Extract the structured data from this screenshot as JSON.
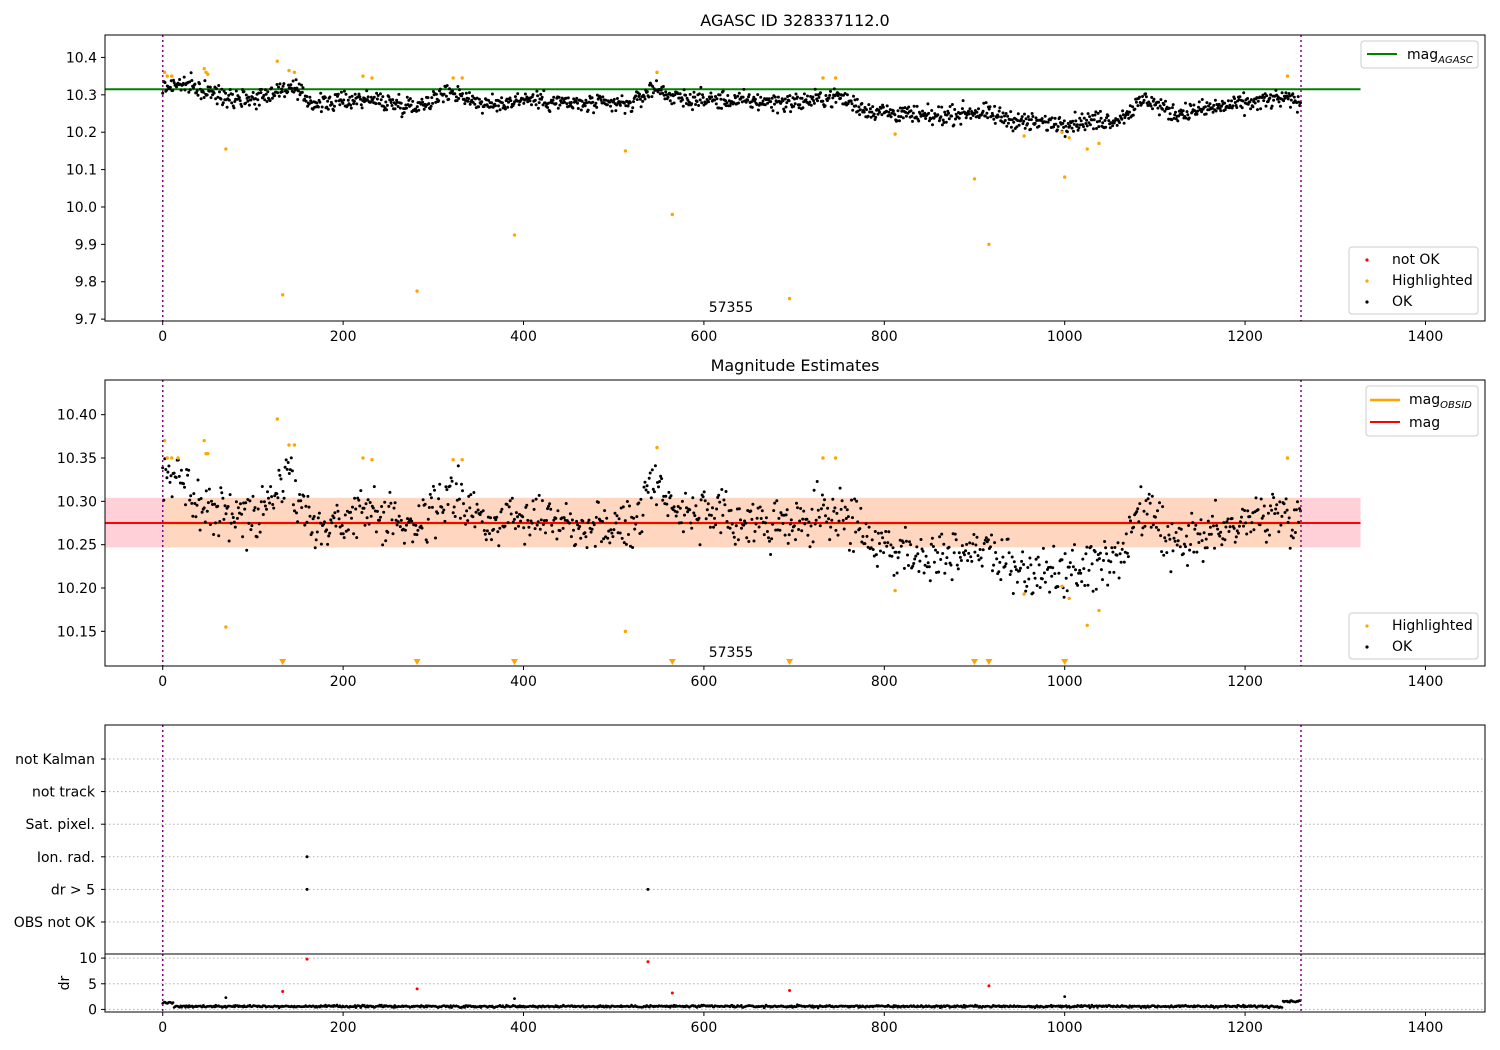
{
  "chart_data": [
    {
      "type": "scatter",
      "title": "AGASC ID 328337112.0",
      "xlabel": "",
      "ylabel": "",
      "xlim": [
        -64,
        1466
      ],
      "ylim": [
        9.695,
        10.46
      ],
      "xticks": [
        "0",
        "200",
        "400",
        "600",
        "800",
        "1000",
        "1200",
        "1400"
      ],
      "yticks": [
        "9.7",
        "9.8",
        "9.9",
        "10.0",
        "10.1",
        "10.2",
        "10.3",
        "10.4"
      ],
      "vlines": [
        0,
        1262
      ],
      "lines": [
        {
          "name": "mag_AGASC",
          "y": 10.315,
          "x_range": [
            -64,
            1328
          ],
          "color": "#008000"
        }
      ],
      "annotation": "57355",
      "legend_line_title": "mag",
      "legend_line_sub": "AGASC",
      "legend_points": [
        "not OK",
        "Highlighted",
        "OK"
      ],
      "point_colors": {
        "not OK": "#ff0000",
        "Highlighted": "#ffa500",
        "OK": "#000000"
      },
      "highlighted_points": [
        [
          2,
          10.36
        ],
        [
          5,
          10.35
        ],
        [
          10,
          10.35
        ],
        [
          46,
          10.37
        ],
        [
          48,
          10.36
        ],
        [
          50,
          10.355
        ],
        [
          70,
          10.155
        ],
        [
          127,
          10.39
        ],
        [
          133,
          9.765
        ],
        [
          140,
          10.365
        ],
        [
          146,
          10.36
        ],
        [
          222,
          10.35
        ],
        [
          232,
          10.345
        ],
        [
          282,
          9.775
        ],
        [
          322,
          10.345
        ],
        [
          332,
          10.345
        ],
        [
          390,
          9.925
        ],
        [
          513,
          10.15
        ],
        [
          548,
          10.36
        ],
        [
          565,
          9.98
        ],
        [
          695,
          9.755
        ],
        [
          732,
          10.345
        ],
        [
          746,
          10.345
        ],
        [
          812,
          10.195
        ],
        [
          900,
          10.075
        ],
        [
          916,
          9.9
        ],
        [
          955,
          10.19
        ],
        [
          997,
          10.2
        ],
        [
          1000,
          10.08
        ],
        [
          1005,
          10.185
        ],
        [
          1025,
          10.155
        ],
        [
          1038,
          10.17
        ],
        [
          1247,
          10.35
        ]
      ],
      "ok_trend": [
        [
          0,
          10.32
        ],
        [
          20,
          10.33
        ],
        [
          40,
          10.315
        ],
        [
          60,
          10.3
        ],
        [
          100,
          10.29
        ],
        [
          140,
          10.32
        ],
        [
          170,
          10.275
        ],
        [
          220,
          10.29
        ],
        [
          280,
          10.27
        ],
        [
          320,
          10.31
        ],
        [
          360,
          10.27
        ],
        [
          400,
          10.29
        ],
        [
          460,
          10.275
        ],
        [
          520,
          10.275
        ],
        [
          545,
          10.32
        ],
        [
          570,
          10.29
        ],
        [
          620,
          10.285
        ],
        [
          700,
          10.28
        ],
        [
          750,
          10.295
        ],
        [
          780,
          10.26
        ],
        [
          850,
          10.24
        ],
        [
          900,
          10.255
        ],
        [
          960,
          10.225
        ],
        [
          1000,
          10.225
        ],
        [
          1060,
          10.235
        ],
        [
          1090,
          10.29
        ],
        [
          1120,
          10.25
        ],
        [
          1180,
          10.27
        ],
        [
          1240,
          10.29
        ],
        [
          1262,
          10.28
        ]
      ]
    },
    {
      "type": "scatter",
      "title": "Magnitude Estimates",
      "xlabel": "",
      "ylabel": "",
      "xlim": [
        -64,
        1466
      ],
      "ylim": [
        10.11,
        10.44
      ],
      "xticks": [
        "0",
        "200",
        "400",
        "600",
        "800",
        "1000",
        "1200",
        "1400"
      ],
      "yticks": [
        "10.15",
        "10.20",
        "10.25",
        "10.30",
        "10.35",
        "10.40"
      ],
      "vlines": [
        0,
        1262
      ],
      "lines": [
        {
          "name": "mag_OBSID",
          "y": 10.275,
          "x_range": [
            0,
            1262
          ],
          "color": "#ffa500"
        },
        {
          "name": "mag",
          "y": 10.275,
          "x_range": [
            -64,
            1328
          ],
          "color": "#ff0000"
        }
      ],
      "bands": [
        {
          "y_range": [
            10.247,
            10.304
          ],
          "x_range": [
            -64,
            1328
          ],
          "color": "#ffc0cb"
        },
        {
          "y_range": [
            10.247,
            10.304
          ],
          "x_range": [
            0,
            1262
          ],
          "color": "#ffdab9"
        }
      ],
      "annotation": "57355",
      "legend_line_entries": [
        {
          "title": "mag",
          "sub": "OBSID",
          "color": "#ffa500"
        },
        {
          "title": "mag",
          "sub": "",
          "color": "#ff0000"
        }
      ],
      "legend_points": [
        "Highlighted",
        "OK"
      ],
      "highlighted_points": [
        [
          2,
          10.37
        ],
        [
          5,
          10.35
        ],
        [
          10,
          10.35
        ],
        [
          17,
          10.35
        ],
        [
          46,
          10.37
        ],
        [
          48,
          10.355
        ],
        [
          50,
          10.355
        ],
        [
          70,
          10.155
        ],
        [
          127,
          10.395
        ],
        [
          140,
          10.365
        ],
        [
          146,
          10.365
        ],
        [
          222,
          10.35
        ],
        [
          232,
          10.348
        ],
        [
          322,
          10.348
        ],
        [
          332,
          10.348
        ],
        [
          513,
          10.15
        ],
        [
          548,
          10.362
        ],
        [
          732,
          10.35
        ],
        [
          746,
          10.35
        ],
        [
          812,
          10.197
        ],
        [
          955,
          10.193
        ],
        [
          997,
          10.202
        ],
        [
          1005,
          10.188
        ],
        [
          1025,
          10.157
        ],
        [
          1038,
          10.174
        ],
        [
          1247,
          10.35
        ]
      ],
      "lower_limit_markers": [
        133,
        282,
        390,
        565,
        695,
        900,
        916,
        1000
      ],
      "ok_trend": [
        [
          0,
          10.32
        ],
        [
          20,
          10.33
        ],
        [
          40,
          10.3
        ],
        [
          60,
          10.29
        ],
        [
          100,
          10.28
        ],
        [
          140,
          10.33
        ],
        [
          170,
          10.265
        ],
        [
          220,
          10.29
        ],
        [
          280,
          10.27
        ],
        [
          320,
          10.31
        ],
        [
          360,
          10.27
        ],
        [
          400,
          10.29
        ],
        [
          460,
          10.275
        ],
        [
          520,
          10.27
        ],
        [
          545,
          10.33
        ],
        [
          570,
          10.29
        ],
        [
          620,
          10.28
        ],
        [
          700,
          10.27
        ],
        [
          750,
          10.29
        ],
        [
          780,
          10.255
        ],
        [
          850,
          10.235
        ],
        [
          900,
          10.25
        ],
        [
          960,
          10.215
        ],
        [
          1000,
          10.215
        ],
        [
          1060,
          10.235
        ],
        [
          1090,
          10.29
        ],
        [
          1120,
          10.245
        ],
        [
          1180,
          10.27
        ],
        [
          1240,
          10.29
        ],
        [
          1262,
          10.28
        ]
      ]
    },
    {
      "type": "scatter",
      "title": "",
      "xlabel": "",
      "ylabel": "",
      "xlim": [
        -64,
        1466
      ],
      "category_labels": [
        "not Kalman",
        "not track",
        "Sat. pixel.",
        "Ion. rad.",
        "dr > 5",
        "OBS not OK"
      ],
      "vlines": [
        0,
        1262
      ],
      "flag_points": [
        {
          "category": "Ion. rad.",
          "x": 160
        },
        {
          "category": "dr > 5",
          "x": 160
        },
        {
          "category": "dr > 5",
          "x": 538
        }
      ]
    },
    {
      "type": "scatter",
      "title": "",
      "xlabel": "",
      "ylabel": "dr",
      "xlim": [
        -64,
        1466
      ],
      "ylim": [
        -0.5,
        10.8
      ],
      "xticks": [
        "0",
        "200",
        "400",
        "600",
        "800",
        "1000",
        "1200",
        "1400"
      ],
      "yticks": [
        "0",
        "5",
        "10"
      ],
      "vlines": [
        0,
        1262
      ],
      "red_points": [
        [
          133,
          3.5
        ],
        [
          160,
          9.8
        ],
        [
          282,
          4.0
        ],
        [
          538,
          9.3
        ],
        [
          565,
          3.2
        ],
        [
          695,
          3.7
        ],
        [
          916,
          4.6
        ]
      ],
      "black_outliers": [
        [
          70,
          2.3
        ],
        [
          390,
          2.1
        ],
        [
          1000,
          2.5
        ]
      ],
      "baseline": {
        "level": 0.6,
        "spread": 0.3,
        "start_level": 1.3,
        "end_level": 1.6
      }
    }
  ]
}
